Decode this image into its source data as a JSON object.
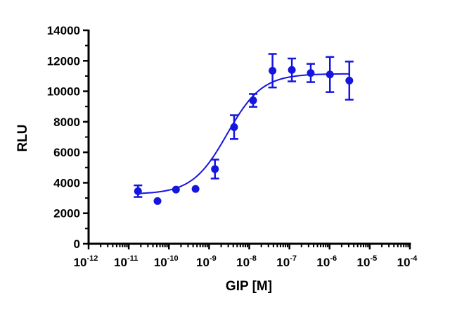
{
  "chart_data": {
    "type": "scatter",
    "title": "",
    "xlabel": "GIP [M]",
    "ylabel": "RLU",
    "x_scale": "log",
    "xlim": [
      1e-12,
      0.0001
    ],
    "ylim": [
      0,
      14000
    ],
    "x_ticks": [
      {
        "base": "10",
        "exp": "-12"
      },
      {
        "base": "10",
        "exp": "-11"
      },
      {
        "base": "10",
        "exp": "-10"
      },
      {
        "base": "10",
        "exp": "-9"
      },
      {
        "base": "10",
        "exp": "-8"
      },
      {
        "base": "10",
        "exp": "-7"
      },
      {
        "base": "10",
        "exp": "-6"
      },
      {
        "base": "10",
        "exp": "-5"
      },
      {
        "base": "10",
        "exp": "-4"
      }
    ],
    "y_ticks": [
      "0",
      "2000",
      "4000",
      "6000",
      "8000",
      "10000",
      "12000",
      "14000"
    ],
    "grid": false,
    "series": [
      {
        "color": "#1515e0",
        "points": [
          {
            "x": 1.7e-11,
            "y": 3450,
            "err": 380
          },
          {
            "x": 5.2e-11,
            "y": 2800,
            "err": 0
          },
          {
            "x": 1.5e-10,
            "y": 3550,
            "err": 0
          },
          {
            "x": 4.6e-10,
            "y": 3600,
            "err": 0
          },
          {
            "x": 1.4e-09,
            "y": 4900,
            "err": 620
          },
          {
            "x": 4.2e-09,
            "y": 7650,
            "err": 780
          },
          {
            "x": 1.25e-08,
            "y": 9400,
            "err": 420
          },
          {
            "x": 3.8e-08,
            "y": 11350,
            "err": 1100
          },
          {
            "x": 1.15e-07,
            "y": 11400,
            "err": 750
          },
          {
            "x": 3.4e-07,
            "y": 11200,
            "err": 600
          },
          {
            "x": 1.02e-06,
            "y": 11100,
            "err": 1150
          },
          {
            "x": 3.1e-06,
            "y": 10700,
            "err": 1250
          }
        ],
        "fit": {
          "model": "four-parameter logistic",
          "bottom": 3250,
          "top": 11150,
          "log_ec50": -8.55,
          "hill": 1.0,
          "x_range": [
            1.7e-11,
            3.1e-06
          ]
        }
      }
    ]
  }
}
